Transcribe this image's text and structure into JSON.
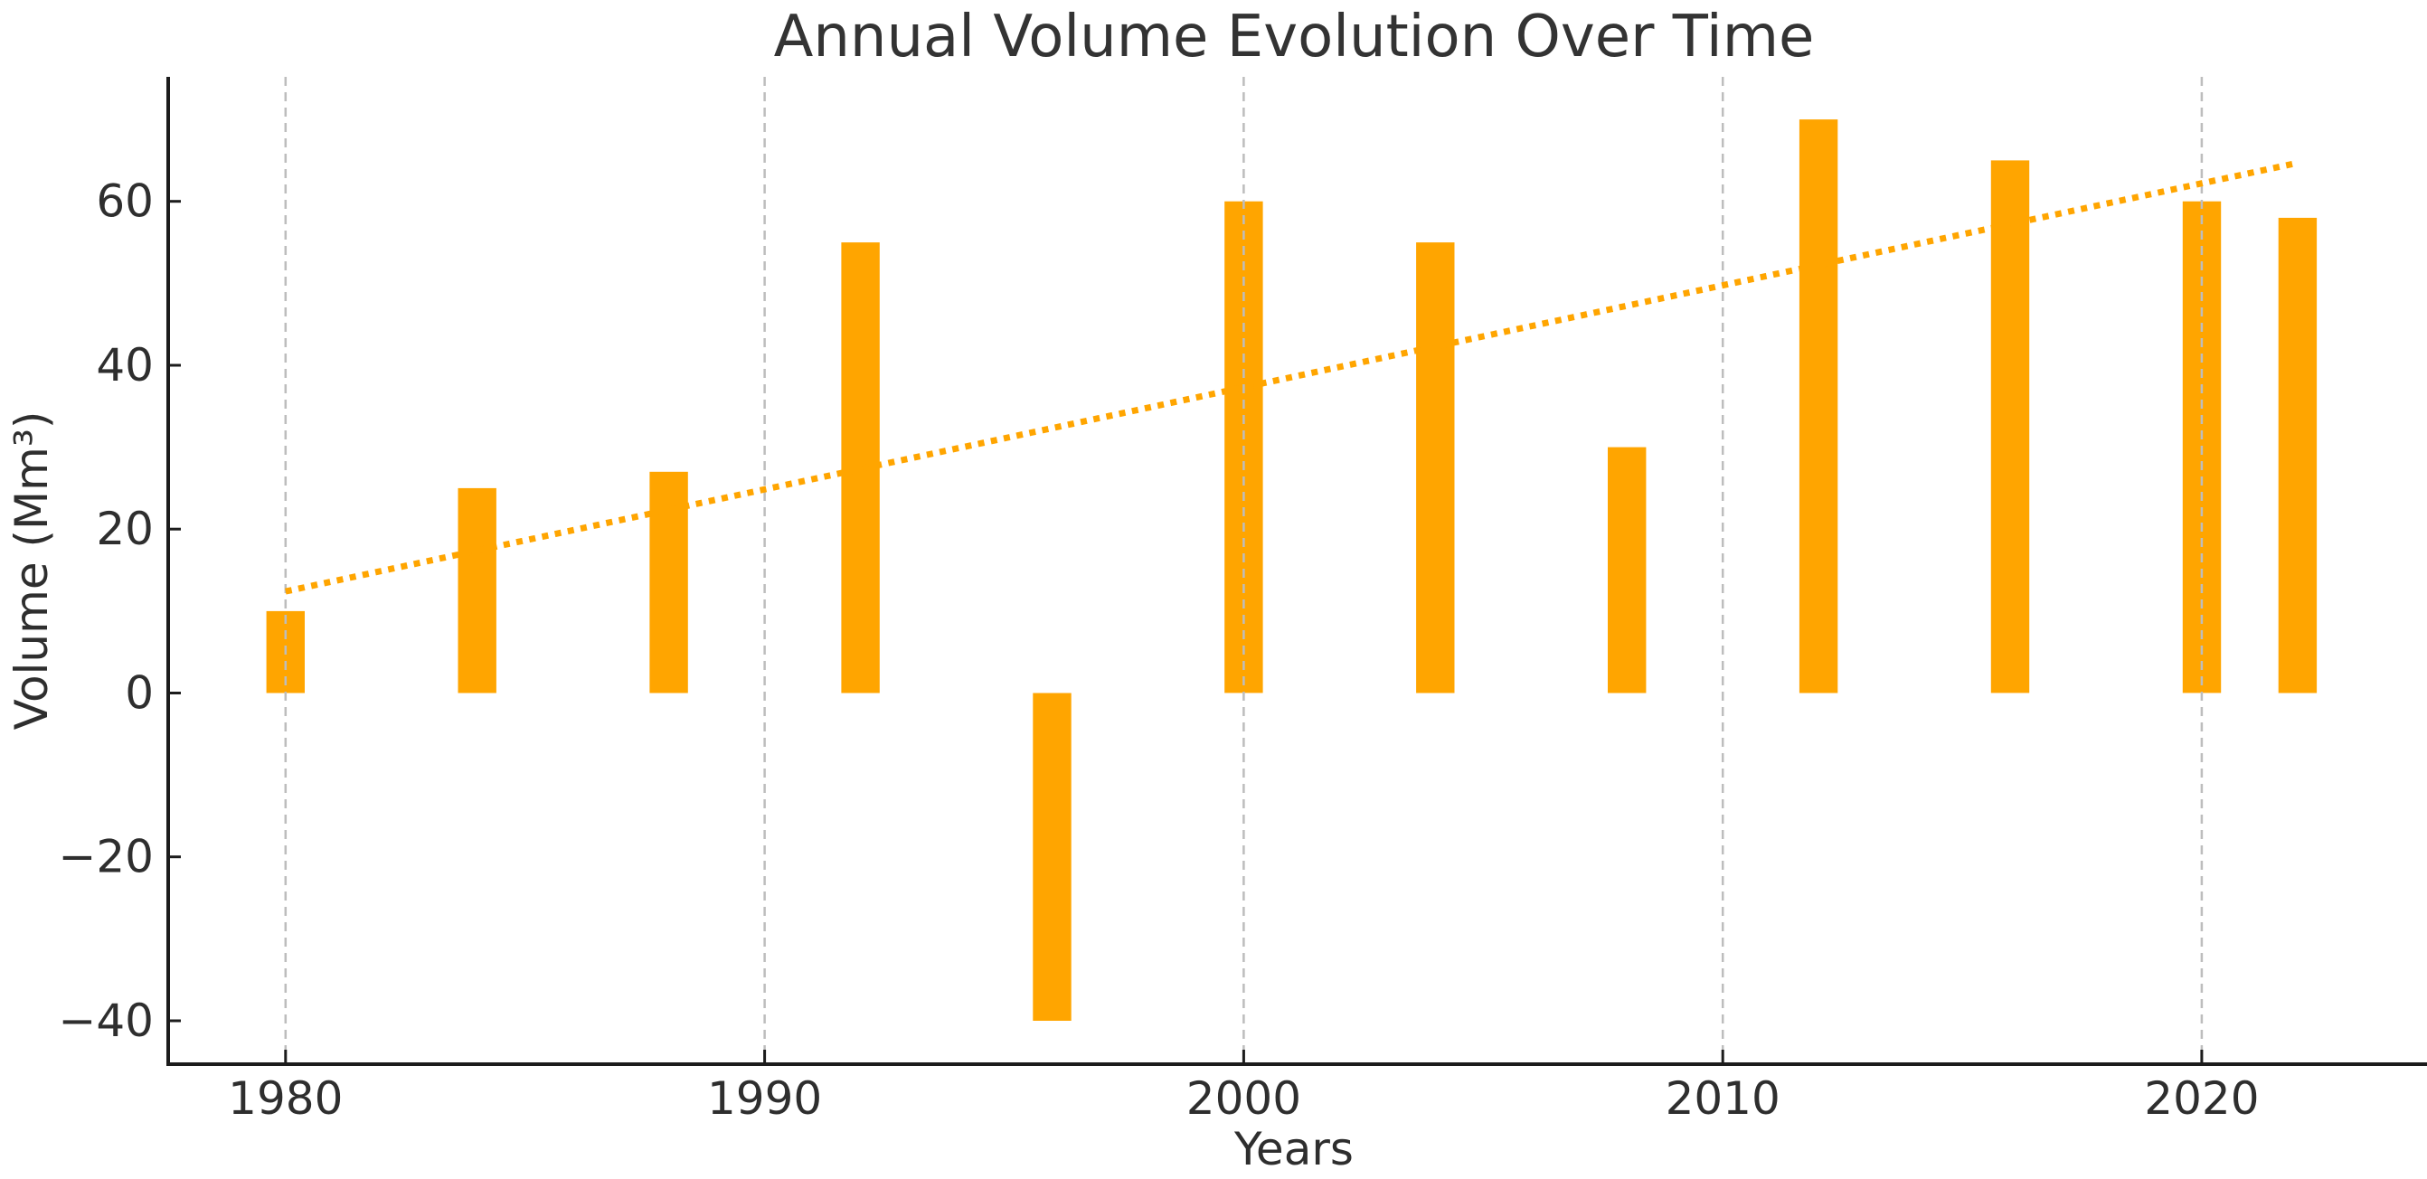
{
  "chart_data": {
    "type": "bar",
    "title": "Annual Volume Evolution Over Time",
    "xlabel": "Years",
    "ylabel": "Volume (Mm³)",
    "categories": [
      1980,
      1984,
      1988,
      1992,
      1996,
      2000,
      2004,
      2008,
      2012,
      2016,
      2020,
      2022
    ],
    "values": [
      10,
      25,
      27,
      55,
      -40,
      60,
      55,
      30,
      70,
      65,
      60,
      58
    ],
    "bar_width_years": 0.8,
    "trend": {
      "style": "dotted",
      "x": [
        1980,
        2022
      ],
      "y": [
        12.4,
        64.7
      ]
    },
    "x_ticks": [
      1980,
      1990,
      2000,
      2010,
      2020
    ],
    "y_ticks": [
      60,
      40,
      20,
      0,
      -20,
      -40
    ],
    "xlim": [
      1977.55,
      2024.55
    ],
    "ylim": [
      -45.3,
      75.2
    ],
    "grid": {
      "axis": "x",
      "style": "dashed",
      "on": true,
      "above_bars": true
    },
    "legend": {
      "visible": false
    },
    "colors": {
      "bar": "#FFA500",
      "trend": "#FFA500",
      "grid": "#bdbdbd",
      "spine": "#1c1c1c",
      "tick": "#1c1c1c",
      "text": "#333333",
      "background": "#ffffff"
    }
  }
}
